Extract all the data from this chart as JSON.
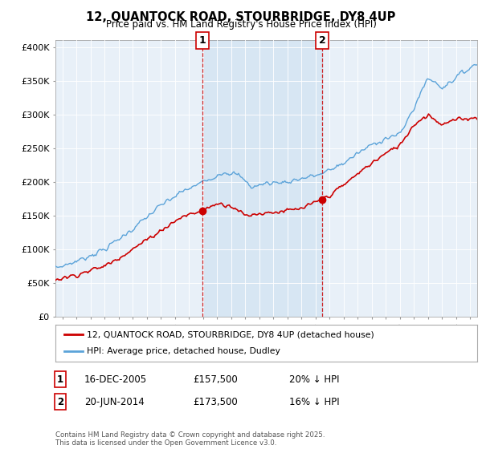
{
  "title": "12, QUANTOCK ROAD, STOURBRIDGE, DY8 4UP",
  "subtitle": "Price paid vs. HM Land Registry's House Price Index (HPI)",
  "ylabel_ticks": [
    "£0",
    "£50K",
    "£100K",
    "£150K",
    "£200K",
    "£250K",
    "£300K",
    "£350K",
    "£400K"
  ],
  "ytick_values": [
    0,
    50000,
    100000,
    150000,
    200000,
    250000,
    300000,
    350000,
    400000
  ],
  "ylim": [
    0,
    410000
  ],
  "xlim_start": 1995.5,
  "xlim_end": 2025.5,
  "hpi_color": "#5ba3d9",
  "hpi_fill_color": "#ddeef8",
  "price_color": "#cc0000",
  "shade_color": "#cce0f0",
  "marker1_date": 2005.96,
  "marker2_date": 2014.47,
  "marker1_price": 157500,
  "marker2_price": 173500,
  "legend_label1": "12, QUANTOCK ROAD, STOURBRIDGE, DY8 4UP (detached house)",
  "legend_label2": "HPI: Average price, detached house, Dudley",
  "ann1_date": "16-DEC-2005",
  "ann1_price": "£157,500",
  "ann1_hpi": "20% ↓ HPI",
  "ann2_date": "20-JUN-2014",
  "ann2_price": "£173,500",
  "ann2_hpi": "16% ↓ HPI",
  "footer": "Contains HM Land Registry data © Crown copyright and database right 2025.\nThis data is licensed under the Open Government Licence v3.0.",
  "fig_bg_color": "#ffffff",
  "plot_bg_color": "#e8f0f8"
}
